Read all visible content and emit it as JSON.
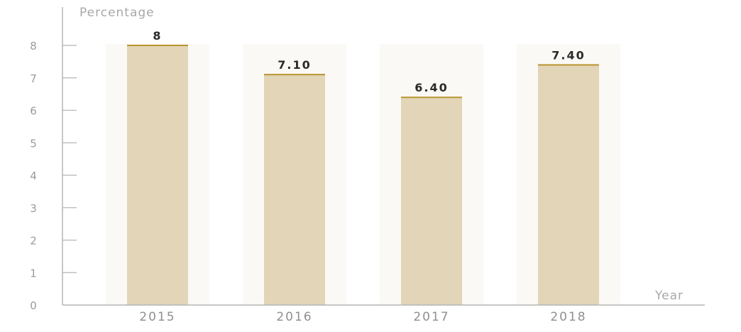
{
  "chart_data": {
    "type": "bar",
    "categories": [
      "2015",
      "2016",
      "2017",
      "2018"
    ],
    "values": [
      8,
      7.1,
      6.4,
      7.4
    ],
    "data_labels": [
      "8",
      "7.10",
      "6.40",
      "7.40"
    ],
    "title": "",
    "xlabel": "Year",
    "ylabel": "Percentage",
    "ylim": [
      0,
      8
    ],
    "yticks": [
      "0",
      "1",
      "2",
      "3",
      "4",
      "5",
      "6",
      "7",
      "8"
    ],
    "grid": false,
    "legend": "none",
    "colors": {
      "bar_fill": "#e2d5b8",
      "bar_top": "#b8952e",
      "bar_shadow": "#f4efe3",
      "axis": "#b5b5b5"
    }
  }
}
